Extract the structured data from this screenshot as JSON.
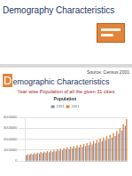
{
  "slides": [
    {
      "title": "Demography Characteristics"
    },
    {
      "source": "Source: Census 2001",
      "title": "Demographic Characteristics",
      "subtitle": "Year wise Population of all the given 31 cities"
    }
  ],
  "chart_data": {
    "type": "bar",
    "title": "Population",
    "categories": [
      null,
      null,
      null,
      null,
      null,
      null,
      null,
      null,
      null,
      null,
      null,
      null,
      null,
      null,
      null,
      null,
      null,
      null,
      null,
      null,
      null,
      null,
      null,
      null,
      null,
      null,
      null,
      null,
      null,
      null,
      null
    ],
    "series": [
      {
        "name": "1991",
        "color": "#7f93b2",
        "values": [
          520000,
          560000,
          600000,
          640000,
          690000,
          720000,
          760000,
          800000,
          850000,
          900000,
          950000,
          1000000,
          1050000,
          1100000,
          1150000,
          1200000,
          1250000,
          1300000,
          1380000,
          1450000,
          1520000,
          1600000,
          1700000,
          1800000,
          1900000,
          2000000,
          2150000,
          2300000,
          2500000,
          2800000,
          3200000
        ]
      },
      {
        "name": "2001",
        "color": "#e2843a",
        "values": [
          620000,
          680000,
          720000,
          770000,
          820000,
          860000,
          910000,
          960000,
          1020000,
          1080000,
          1140000,
          1200000,
          1260000,
          1320000,
          1380000,
          1440000,
          1500000,
          1560000,
          1650000,
          1740000,
          1820000,
          1920000,
          2040000,
          2160000,
          2280000,
          2400000,
          2580000,
          2760000,
          3000000,
          3360000,
          3840000
        ]
      }
    ],
    "ylim": [
      0,
      4000000
    ],
    "yticks": [
      0,
      1000000,
      2000000,
      3000000,
      4000000
    ],
    "grid": true,
    "legend": "top"
  }
}
